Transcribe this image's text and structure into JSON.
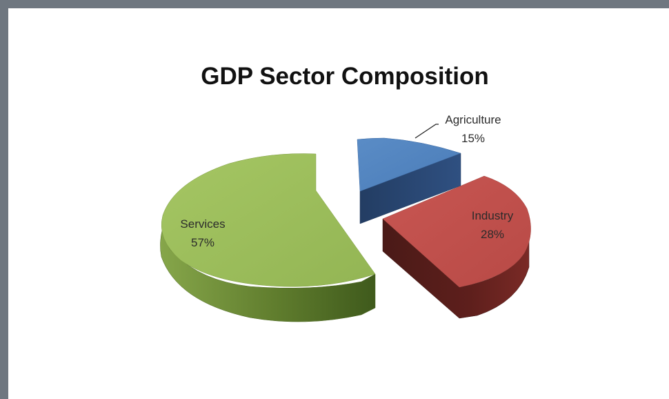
{
  "chart_data": {
    "type": "pie",
    "title": "GDP Sector Composition",
    "style": "3d-exploded",
    "slices": [
      {
        "label": "Agriculture",
        "value": 15,
        "value_label": "15%",
        "color": "#4f81bd"
      },
      {
        "label": "Industry",
        "value": 28,
        "value_label": "28%",
        "color": "#c0504d"
      },
      {
        "label": "Services",
        "value": 57,
        "value_label": "57%",
        "color": "#9bbb59"
      }
    ]
  }
}
